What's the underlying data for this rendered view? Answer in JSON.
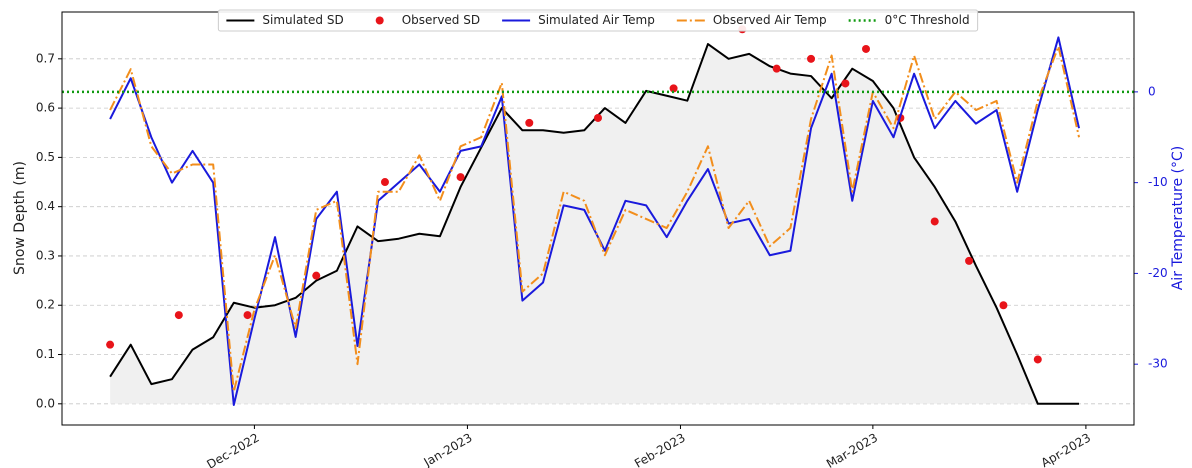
{
  "chart_data": {
    "type": "line",
    "ylabel": "Snow Depth (m)",
    "y2label": "Air Temperature (°C)",
    "x": [
      "2022-11-10",
      "2022-11-13",
      "2022-11-16",
      "2022-11-19",
      "2022-11-22",
      "2022-11-25",
      "2022-11-28",
      "2022-12-01",
      "2022-12-04",
      "2022-12-07",
      "2022-12-10",
      "2022-12-13",
      "2022-12-16",
      "2022-12-19",
      "2022-12-22",
      "2022-12-25",
      "2022-12-28",
      "2022-12-31",
      "2023-01-03",
      "2023-01-06",
      "2023-01-09",
      "2023-01-12",
      "2023-01-15",
      "2023-01-18",
      "2023-01-21",
      "2023-01-24",
      "2023-01-27",
      "2023-01-30",
      "2023-02-02",
      "2023-02-05",
      "2023-02-08",
      "2023-02-11",
      "2023-02-14",
      "2023-02-17",
      "2023-02-20",
      "2023-02-23",
      "2023-02-26",
      "2023-03-01",
      "2023-03-04",
      "2023-03-07",
      "2023-03-10",
      "2023-03-13",
      "2023-03-16",
      "2023-03-19",
      "2023-03-22",
      "2023-03-25",
      "2023-03-28",
      "2023-03-31"
    ],
    "series": [
      {
        "name": "Simulated SD",
        "type": "line",
        "color": "#000000",
        "width": 2,
        "dash": "solid",
        "fill": "#f0f0f0",
        "values": [
          0.055,
          0.12,
          0.04,
          0.05,
          0.11,
          0.135,
          0.205,
          0.195,
          0.2,
          0.215,
          0.25,
          0.27,
          0.36,
          0.33,
          0.335,
          0.345,
          0.34,
          0.44,
          0.52,
          0.6,
          0.555,
          0.555,
          0.55,
          0.555,
          0.6,
          0.57,
          0.635,
          0.625,
          0.615,
          0.73,
          0.7,
          0.71,
          0.685,
          0.67,
          0.665,
          0.62,
          0.68,
          0.655,
          0.6,
          0.5,
          0.44,
          0.37,
          0.28,
          0.195,
          0.1,
          0,
          0,
          0
        ]
      },
      {
        "name": "Observed SD",
        "type": "scatter",
        "color": "#e8141a",
        "x": [
          "2022-11-10",
          "2022-11-20",
          "2022-11-30",
          "2022-12-10",
          "2022-12-20",
          "2022-12-31",
          "2023-01-10",
          "2023-01-20",
          "2023-01-31",
          "2023-02-10",
          "2023-02-15",
          "2023-02-20",
          "2023-02-25",
          "2023-02-28",
          "2023-03-05",
          "2023-03-10",
          "2023-03-15",
          "2023-03-20",
          "2023-03-25"
        ],
        "values": [
          0.12,
          0.18,
          0.18,
          0.26,
          0.45,
          0.46,
          0.57,
          0.58,
          0.64,
          0.76,
          0.68,
          0.7,
          0.65,
          0.72,
          0.58,
          0.37,
          0.29,
          0.2,
          0.09
        ]
      },
      {
        "name": "Simulated Air Temp",
        "type": "line",
        "axis": "y2",
        "color": "#1a1adc",
        "width": 2,
        "dash": "solid",
        "values": [
          -3,
          1.5,
          -5,
          -10,
          -6.5,
          -10,
          -34.5,
          -25,
          -16,
          -27,
          -14,
          -11,
          -28,
          -12,
          -10,
          -8,
          -11,
          -6.5,
          -6,
          -0.5,
          -23,
          -21,
          -12.5,
          -13,
          -17.5,
          -12,
          -12.5,
          -16,
          -12,
          -8.5,
          -14.5,
          -14,
          -18,
          -17.5,
          -4,
          2,
          -12,
          -1,
          -5,
          2,
          -4,
          -1,
          -3.5,
          -2,
          -11,
          -2,
          6,
          -4
        ]
      },
      {
        "name": "Observed Air Temp",
        "type": "line",
        "axis": "y2",
        "color": "#f28e1c",
        "width": 2,
        "dash": "dashdot",
        "values": [
          -2,
          2.5,
          -6,
          -9,
          -8,
          -8,
          -33,
          -24,
          -18,
          -26,
          -13,
          -12,
          -30,
          -11,
          -11,
          -7,
          -12,
          -6,
          -5,
          1,
          -22,
          -20,
          -11,
          -12,
          -18,
          -13,
          -14,
          -15,
          -11,
          -6,
          -15,
          -12,
          -17,
          -15,
          -3,
          4,
          -11,
          0,
          -4,
          4,
          -3,
          0,
          -2,
          -1,
          -10,
          -1,
          5,
          -5
        ]
      }
    ],
    "hlines": [
      {
        "name": "0°C Threshold",
        "value": 0,
        "axis": "y2",
        "color": "#109a10",
        "dash": "dotted"
      }
    ],
    "xlim": [
      "2022-11-03",
      "2023-04-08"
    ],
    "xticks": [
      {
        "value": "2022-12-01",
        "label": "Dec-2022"
      },
      {
        "value": "2023-01-01",
        "label": "Jan-2023"
      },
      {
        "value": "2023-02-01",
        "label": "Feb-2023"
      },
      {
        "value": "2023-03-01",
        "label": "Mar-2023"
      },
      {
        "value": "2023-04-01",
        "label": "Apr-2023"
      }
    ],
    "ylim": [
      -0.043,
      0.795
    ],
    "yticks": [
      {
        "value": 0,
        "label": "0.0"
      },
      0.1,
      0.2,
      0.3,
      0.4,
      0.5,
      0.6,
      0.7
    ],
    "y2lim": [
      -36.7,
      8.8
    ],
    "y2ticks": [
      -30,
      -20,
      -10,
      0
    ],
    "y2color": "#1a1adc",
    "grid": true,
    "legend": "top"
  }
}
